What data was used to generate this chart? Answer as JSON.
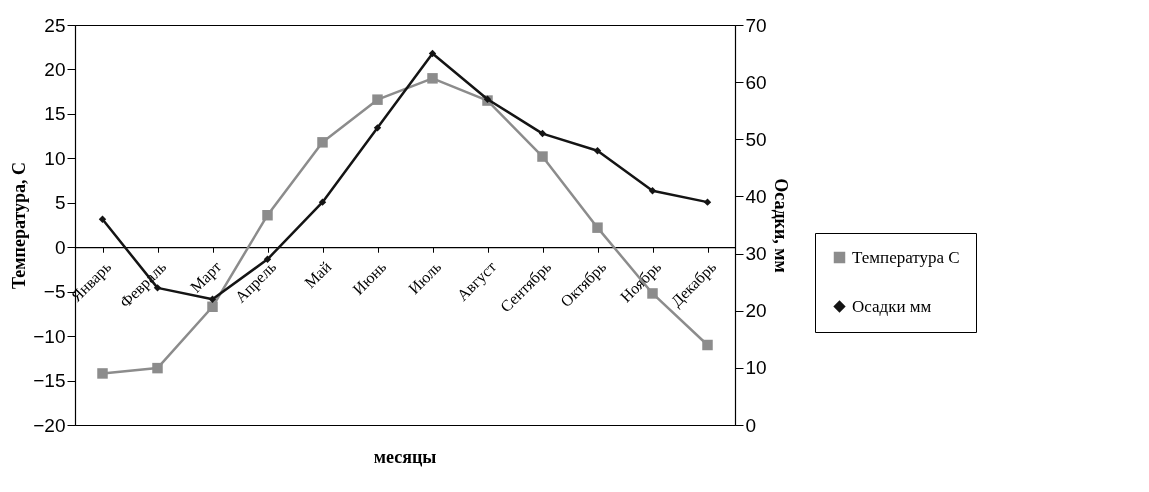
{
  "chart_data": {
    "type": "line",
    "xlabel": "месяцы",
    "ylabel": "Температура, С",
    "y2label": "Осадки, мм",
    "categories": [
      "Январь",
      "Февраль",
      "Март",
      "Апрель",
      "Май",
      "Июнь",
      "Июль",
      "Август",
      "Сентябрь",
      "Октябрь",
      "Ноябрь",
      "Декабрь"
    ],
    "series": [
      {
        "name": "Температура С",
        "color": "#8c8c8c",
        "marker": "square",
        "values": [
          -14.2,
          -13.6,
          -6.7,
          3.6,
          11.8,
          16.6,
          19,
          16.5,
          10.2,
          2.2,
          -5.2,
          -11
        ]
      },
      {
        "name": "Осадки мм",
        "color": "#141414",
        "marker": "diamond",
        "axis": "y2",
        "values": [
          36,
          24,
          22,
          29,
          39,
          52,
          65,
          57,
          51,
          48,
          41,
          39
        ]
      }
    ],
    "ylim": [
      -20,
      25
    ],
    "yticks": [
      -20,
      -15,
      -10,
      -5,
      0,
      5,
      10,
      15,
      20,
      25
    ],
    "y2lim": [
      0,
      70
    ],
    "y2ticks": [
      0,
      10,
      20,
      30,
      40,
      50,
      60,
      70
    ],
    "legend": "right",
    "grid": false
  }
}
